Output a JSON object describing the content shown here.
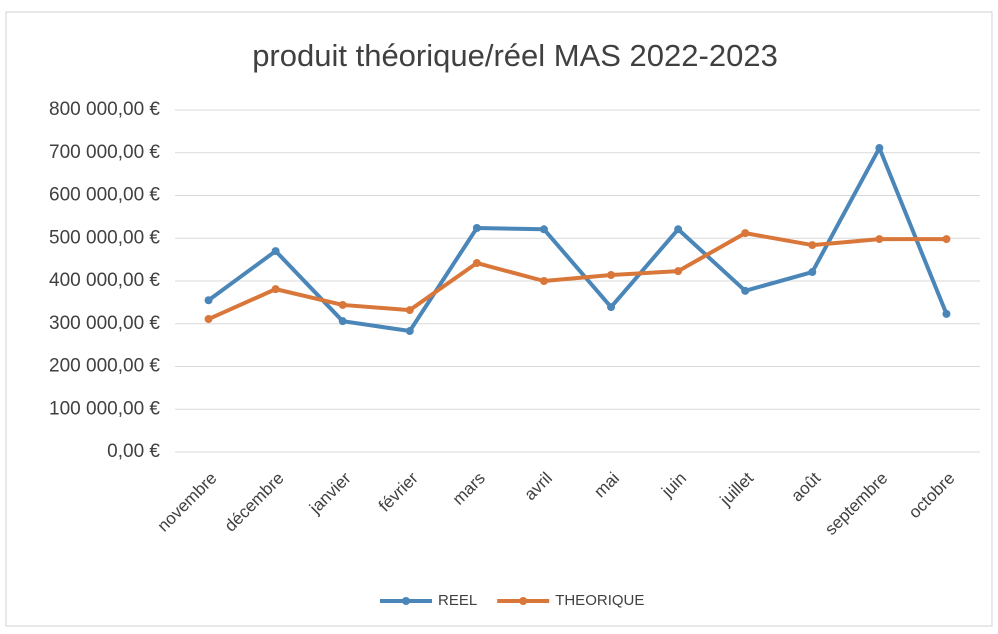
{
  "chart_data": {
    "type": "line",
    "title": "produit théorique/réel MAS 2022-2023",
    "categories": [
      "novembre",
      "décembre",
      "janvier",
      "février",
      "mars",
      "avril",
      "mai",
      "juin",
      "juillet",
      "août",
      "septembre",
      "octobre"
    ],
    "series": [
      {
        "name": "REEL",
        "color": "#4a86b8",
        "values": [
          355000,
          470000,
          306000,
          283000,
          524000,
          521000,
          339000,
          521000,
          377000,
          421000,
          711000,
          323000
        ]
      },
      {
        "name": "THEORIQUE",
        "color": "#d9773a",
        "values": [
          311000,
          381000,
          344000,
          332000,
          442000,
          400000,
          414000,
          423000,
          512000,
          484000,
          498000,
          498000
        ]
      }
    ],
    "ylim": [
      0,
      800000
    ],
    "yticks": [
      {
        "value": 0,
        "label": "0,00 €"
      },
      {
        "value": 100000,
        "label": "100 000,00 €"
      },
      {
        "value": 200000,
        "label": "200 000,00 €"
      },
      {
        "value": 300000,
        "label": "300 000,00 €"
      },
      {
        "value": 400000,
        "label": "400 000,00 €"
      },
      {
        "value": 500000,
        "label": "500 000,00 €"
      },
      {
        "value": 600000,
        "label": "600 000,00 €"
      },
      {
        "value": 700000,
        "label": "700 000,00 €"
      },
      {
        "value": 800000,
        "label": "800 000,00 €"
      }
    ],
    "grid": true,
    "legend": "bottom"
  }
}
